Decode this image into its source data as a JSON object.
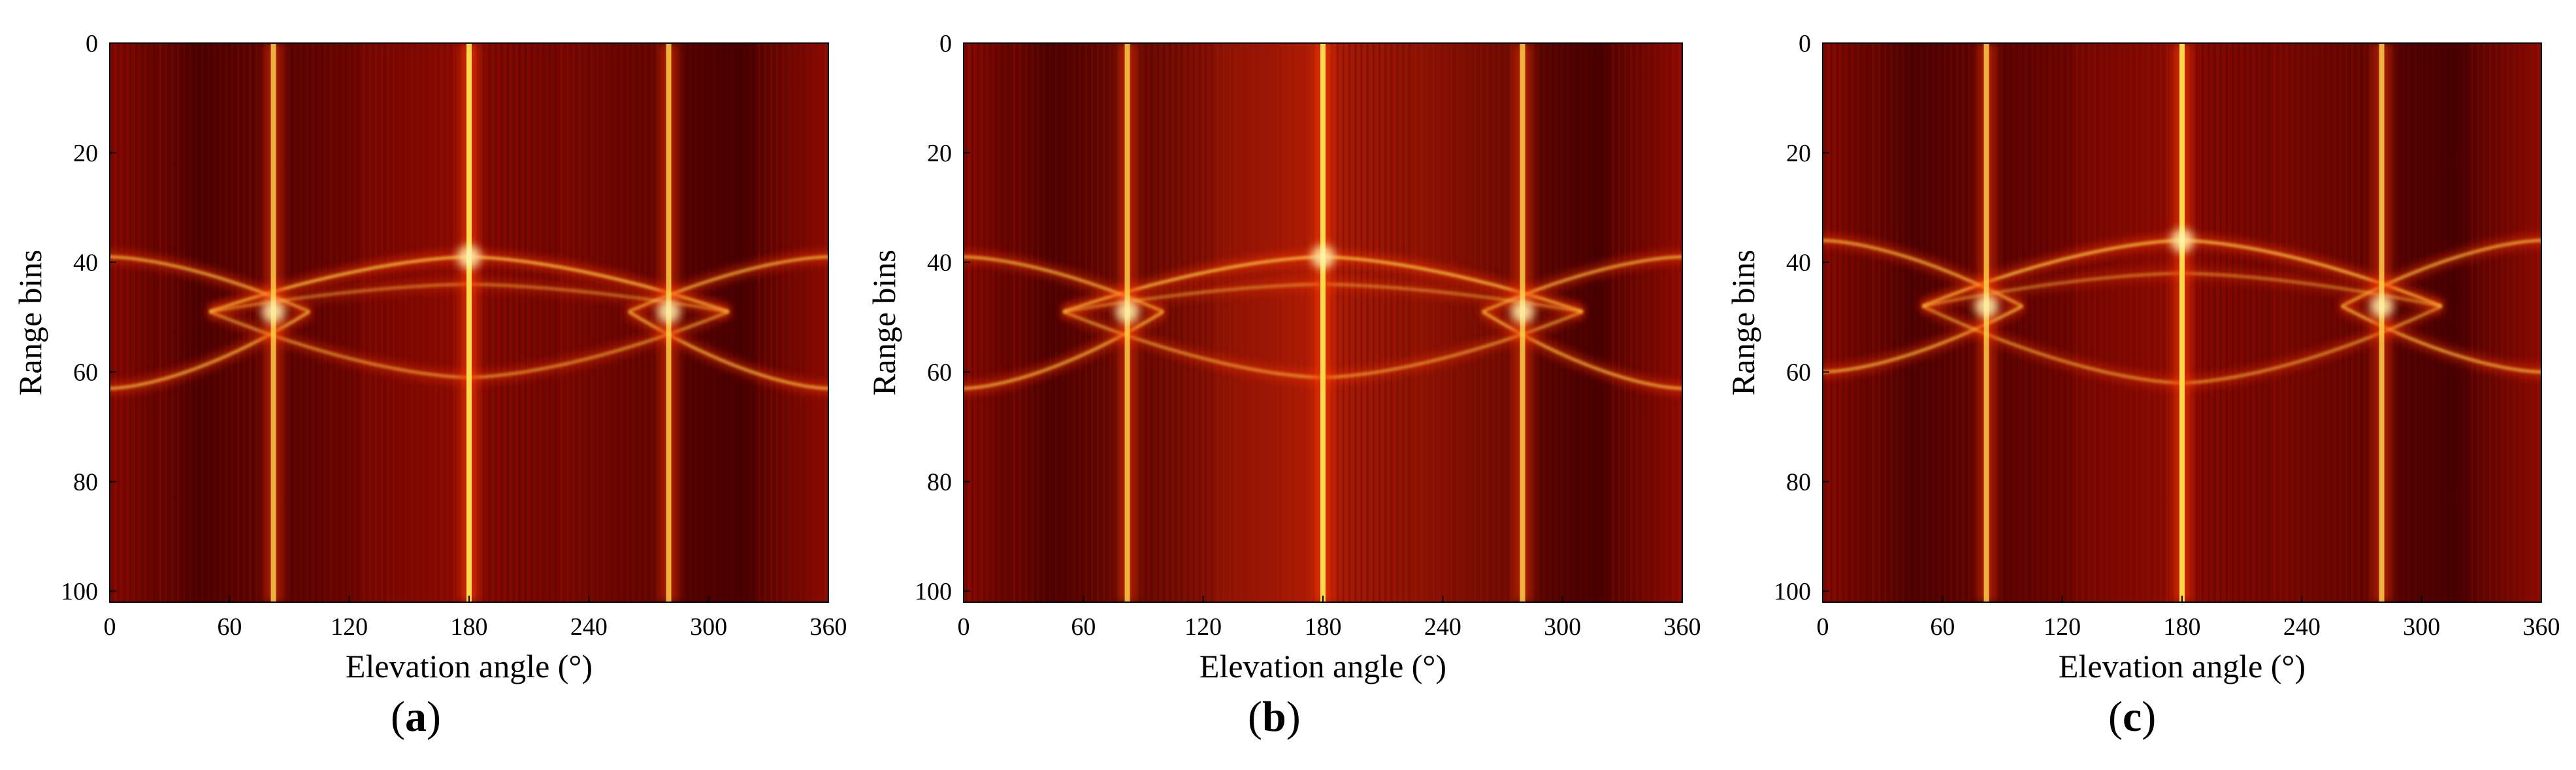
{
  "figure": {
    "panels": [
      {
        "label_prefix": "(",
        "label_letter": "a",
        "label_suffix": ")"
      },
      {
        "label_prefix": "(",
        "label_letter": "b",
        "label_suffix": ")"
      },
      {
        "label_prefix": "(",
        "label_letter": "c",
        "label_suffix": ")"
      }
    ]
  },
  "colors": {
    "background_dark": "#4a0000",
    "background_mid": "#8a0a00",
    "line_bright": "#ffd84a",
    "line_hot": "#ff3a00"
  },
  "chart_data": [
    {
      "type": "heatmap",
      "xlabel": "Elevation angle (°)",
      "ylabel": "Range bins",
      "xlim": [
        0,
        360
      ],
      "ylim": [
        102,
        0
      ],
      "xticks": [
        0,
        60,
        120,
        180,
        240,
        300,
        360
      ],
      "yticks": [
        0,
        20,
        40,
        60,
        80,
        100
      ],
      "colormap": "hot",
      "vertical_lines": [
        {
          "angle": 82,
          "intensity": 0.8
        },
        {
          "angle": 180,
          "intensity": 1.0
        },
        {
          "angle": 280,
          "intensity": 0.8
        }
      ],
      "curves": [
        {
          "center": 180,
          "peak_bin": 39,
          "edge_bin": 49,
          "extent": 130,
          "intensity": 0.95
        },
        {
          "center": 0,
          "peak_bin": 39,
          "edge_bin": 49,
          "extent": 100,
          "intensity": 0.85
        },
        {
          "center": 360,
          "peak_bin": 39,
          "edge_bin": 49,
          "extent": 100,
          "intensity": 0.85
        },
        {
          "center": 0,
          "peak_bin": 63,
          "edge_bin": 49,
          "extent": 100,
          "intensity": 0.85
        },
        {
          "center": 360,
          "peak_bin": 63,
          "edge_bin": 49,
          "extent": 100,
          "intensity": 0.85
        },
        {
          "center": 180,
          "peak_bin": 61,
          "edge_bin": 49,
          "extent": 130,
          "intensity": 0.7
        },
        {
          "center": 180,
          "peak_bin": 44,
          "edge_bin": 49,
          "extent": 130,
          "intensity": 0.55
        }
      ],
      "intersections": [
        {
          "angle": 82,
          "bin": 49
        },
        {
          "angle": 180,
          "bin": 39
        },
        {
          "angle": 280,
          "bin": 49
        }
      ]
    },
    {
      "type": "heatmap",
      "xlabel": "Elevation angle (°)",
      "ylabel": "Range bins",
      "xlim": [
        0,
        360
      ],
      "ylim": [
        102,
        0
      ],
      "xticks": [
        0,
        60,
        120,
        180,
        240,
        300,
        360
      ],
      "yticks": [
        0,
        20,
        40,
        60,
        80,
        100
      ],
      "colormap": "hot",
      "vertical_lines": [
        {
          "angle": 82,
          "intensity": 0.8
        },
        {
          "angle": 180,
          "intensity": 1.0
        },
        {
          "angle": 280,
          "intensity": 0.8
        }
      ],
      "curves": [
        {
          "center": 180,
          "peak_bin": 39,
          "edge_bin": 49,
          "extent": 130,
          "intensity": 0.95
        },
        {
          "center": 0,
          "peak_bin": 39,
          "edge_bin": 49,
          "extent": 100,
          "intensity": 0.85
        },
        {
          "center": 360,
          "peak_bin": 39,
          "edge_bin": 49,
          "extent": 100,
          "intensity": 0.85
        },
        {
          "center": 0,
          "peak_bin": 63,
          "edge_bin": 49,
          "extent": 100,
          "intensity": 0.85
        },
        {
          "center": 360,
          "peak_bin": 63,
          "edge_bin": 49,
          "extent": 100,
          "intensity": 0.85
        },
        {
          "center": 180,
          "peak_bin": 61,
          "edge_bin": 49,
          "extent": 130,
          "intensity": 0.7
        },
        {
          "center": 180,
          "peak_bin": 44,
          "edge_bin": 49,
          "extent": 130,
          "intensity": 0.55
        }
      ],
      "intersections": [
        {
          "angle": 82,
          "bin": 49
        },
        {
          "angle": 180,
          "bin": 39
        },
        {
          "angle": 280,
          "bin": 49
        }
      ]
    },
    {
      "type": "heatmap",
      "xlabel": "Elevation angle (°)",
      "ylabel": "Range bins",
      "xlim": [
        0,
        360
      ],
      "ylim": [
        102,
        0
      ],
      "xticks": [
        0,
        60,
        120,
        180,
        240,
        300,
        360
      ],
      "yticks": [
        0,
        20,
        40,
        60,
        80,
        100
      ],
      "colormap": "hot",
      "vertical_lines": [
        {
          "angle": 82,
          "intensity": 0.8
        },
        {
          "angle": 180,
          "intensity": 1.0
        },
        {
          "angle": 280,
          "intensity": 0.8
        }
      ],
      "curves": [
        {
          "center": 180,
          "peak_bin": 36,
          "edge_bin": 48,
          "extent": 130,
          "intensity": 0.95
        },
        {
          "center": 0,
          "peak_bin": 36,
          "edge_bin": 48,
          "extent": 100,
          "intensity": 0.85
        },
        {
          "center": 360,
          "peak_bin": 36,
          "edge_bin": 48,
          "extent": 100,
          "intensity": 0.85
        },
        {
          "center": 0,
          "peak_bin": 60,
          "edge_bin": 48,
          "extent": 100,
          "intensity": 0.85
        },
        {
          "center": 360,
          "peak_bin": 60,
          "edge_bin": 48,
          "extent": 100,
          "intensity": 0.85
        },
        {
          "center": 180,
          "peak_bin": 62,
          "edge_bin": 48,
          "extent": 130,
          "intensity": 0.7
        },
        {
          "center": 180,
          "peak_bin": 42,
          "edge_bin": 48,
          "extent": 130,
          "intensity": 0.55
        }
      ],
      "intersections": [
        {
          "angle": 82,
          "bin": 48
        },
        {
          "angle": 180,
          "bin": 36
        },
        {
          "angle": 280,
          "bin": 48
        }
      ]
    }
  ]
}
